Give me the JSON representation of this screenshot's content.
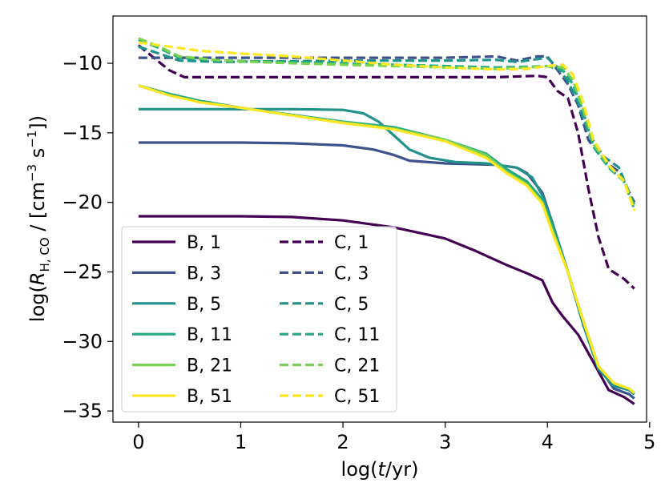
{
  "chart_data": {
    "type": "line",
    "title": "",
    "xlabel": "log(t/yr)",
    "ylabel": "log(R_H,CO / [cm^-3 s^-1])",
    "xlim": [
      -0.25,
      4.97
    ],
    "ylim": [
      -35.8,
      -6.6
    ],
    "xticks": [
      {
        "v": 0,
        "label": "0"
      },
      {
        "v": 1,
        "label": "1"
      },
      {
        "v": 2,
        "label": "2"
      },
      {
        "v": 3,
        "label": "3"
      },
      {
        "v": 4,
        "label": "4"
      },
      {
        "v": 5,
        "label": "5"
      }
    ],
    "yticks": [
      {
        "v": -10,
        "label": "−10"
      },
      {
        "v": -15,
        "label": "−15"
      },
      {
        "v": -20,
        "label": "−20"
      },
      {
        "v": -25,
        "label": "−25"
      },
      {
        "v": -30,
        "label": "−30"
      },
      {
        "v": -35,
        "label": "−35"
      }
    ],
    "legend_position": "lower-left",
    "series": [
      {
        "name": "B, 1",
        "color": "#440154",
        "dash": false,
        "points": [
          [
            0,
            -21
          ],
          [
            0.5,
            -21
          ],
          [
            1,
            -21
          ],
          [
            1.5,
            -21.05
          ],
          [
            2,
            -21.3
          ],
          [
            2.5,
            -21.8
          ],
          [
            3,
            -22.6
          ],
          [
            3.3,
            -23.5
          ],
          [
            3.6,
            -24.5
          ],
          [
            3.8,
            -25.1
          ],
          [
            3.95,
            -25.6
          ],
          [
            4.05,
            -27.2
          ],
          [
            4.15,
            -28.2
          ],
          [
            4.3,
            -29.5
          ],
          [
            4.45,
            -31.5
          ],
          [
            4.6,
            -33.5
          ],
          [
            4.75,
            -34
          ],
          [
            4.85,
            -34.5
          ]
        ]
      },
      {
        "name": "B, 3",
        "color": "#3b528b",
        "dash": false,
        "points": [
          [
            0,
            -15.7
          ],
          [
            0.5,
            -15.7
          ],
          [
            1,
            -15.7
          ],
          [
            1.5,
            -15.75
          ],
          [
            2,
            -15.9
          ],
          [
            2.3,
            -16.2
          ],
          [
            2.5,
            -16.6
          ],
          [
            2.65,
            -17
          ],
          [
            3,
            -17.2
          ],
          [
            3.5,
            -17.3
          ],
          [
            3.7,
            -17.5
          ],
          [
            3.8,
            -17.9
          ],
          [
            3.95,
            -19.3
          ],
          [
            4.05,
            -21.5
          ],
          [
            4.2,
            -25
          ],
          [
            4.35,
            -28.5
          ],
          [
            4.5,
            -31.8
          ],
          [
            4.65,
            -33.4
          ],
          [
            4.8,
            -33.8
          ],
          [
            4.85,
            -34.1
          ]
        ]
      },
      {
        "name": "B, 5",
        "color": "#21918c",
        "dash": false,
        "points": [
          [
            0,
            -13.3
          ],
          [
            0.5,
            -13.3
          ],
          [
            1,
            -13.3
          ],
          [
            1.5,
            -13.3
          ],
          [
            2,
            -13.35
          ],
          [
            2.2,
            -13.6
          ],
          [
            2.35,
            -14.2
          ],
          [
            2.5,
            -15.2
          ],
          [
            2.65,
            -16.2
          ],
          [
            2.85,
            -16.8
          ],
          [
            3.1,
            -17.1
          ],
          [
            3.4,
            -17.2
          ],
          [
            3.7,
            -17.5
          ],
          [
            3.85,
            -18.2
          ],
          [
            3.95,
            -19.5
          ],
          [
            4.05,
            -21.5
          ],
          [
            4.2,
            -25
          ],
          [
            4.35,
            -28.8
          ],
          [
            4.5,
            -32
          ],
          [
            4.65,
            -33.2
          ],
          [
            4.8,
            -33.5
          ],
          [
            4.85,
            -33.8
          ]
        ]
      },
      {
        "name": "B, 11",
        "color": "#22a884",
        "dash": false,
        "points": [
          [
            0,
            -11.6
          ],
          [
            0.3,
            -12.2
          ],
          [
            0.6,
            -12.7
          ],
          [
            1,
            -13.2
          ],
          [
            1.5,
            -13.7
          ],
          [
            2,
            -14.2
          ],
          [
            2.5,
            -14.6
          ],
          [
            3,
            -15.5
          ],
          [
            3.4,
            -16.5
          ],
          [
            3.6,
            -17.6
          ],
          [
            3.8,
            -18.5
          ],
          [
            3.95,
            -19.8
          ],
          [
            4.05,
            -21.8
          ],
          [
            4.2,
            -25
          ],
          [
            4.35,
            -28.5
          ],
          [
            4.5,
            -31.8
          ],
          [
            4.65,
            -33
          ],
          [
            4.8,
            -33.4
          ],
          [
            4.85,
            -33.7
          ]
        ]
      },
      {
        "name": "B, 21",
        "color": "#7ad151",
        "dash": false,
        "points": [
          [
            0,
            -11.6
          ],
          [
            0.3,
            -12.3
          ],
          [
            0.6,
            -12.8
          ],
          [
            1,
            -13.2
          ],
          [
            1.5,
            -13.75
          ],
          [
            2,
            -14.25
          ],
          [
            2.5,
            -14.7
          ],
          [
            3,
            -15.5
          ],
          [
            3.4,
            -16.6
          ],
          [
            3.6,
            -17.8
          ],
          [
            3.8,
            -18.7
          ],
          [
            3.95,
            -20
          ],
          [
            4.05,
            -22
          ],
          [
            4.2,
            -25
          ],
          [
            4.35,
            -28.5
          ],
          [
            4.5,
            -31.8
          ],
          [
            4.65,
            -33
          ],
          [
            4.8,
            -33.4
          ],
          [
            4.85,
            -33.7
          ]
        ]
      },
      {
        "name": "B, 51",
        "color": "#fde725",
        "dash": false,
        "points": [
          [
            0,
            -11.6
          ],
          [
            0.3,
            -12.3
          ],
          [
            0.6,
            -12.8
          ],
          [
            1,
            -13.2
          ],
          [
            1.5,
            -13.75
          ],
          [
            2,
            -14.3
          ],
          [
            2.5,
            -14.75
          ],
          [
            3,
            -15.6
          ],
          [
            3.4,
            -16.8
          ],
          [
            3.6,
            -17.9
          ],
          [
            3.8,
            -18.8
          ],
          [
            3.95,
            -20.1
          ],
          [
            4.05,
            -22.2
          ],
          [
            4.2,
            -25
          ],
          [
            4.35,
            -28.5
          ],
          [
            4.5,
            -31.8
          ],
          [
            4.65,
            -33
          ],
          [
            4.8,
            -33.4
          ],
          [
            4.85,
            -33.7
          ]
        ]
      },
      {
        "name": "C, 1",
        "color": "#440154",
        "dash": true,
        "points": [
          [
            0,
            -8.7
          ],
          [
            0.15,
            -9.6
          ],
          [
            0.3,
            -10.5
          ],
          [
            0.45,
            -11
          ],
          [
            1,
            -11
          ],
          [
            2,
            -11
          ],
          [
            3,
            -11
          ],
          [
            3.5,
            -11
          ],
          [
            3.7,
            -10.95
          ],
          [
            3.9,
            -10.9
          ],
          [
            4,
            -11
          ],
          [
            4.1,
            -12
          ],
          [
            4.2,
            -12.5
          ],
          [
            4.3,
            -15
          ],
          [
            4.4,
            -19
          ],
          [
            4.5,
            -22.5
          ],
          [
            4.6,
            -24.8
          ],
          [
            4.75,
            -25.5
          ],
          [
            4.85,
            -26.2
          ]
        ]
      },
      {
        "name": "C, 3",
        "color": "#3b528b",
        "dash": true,
        "points": [
          [
            0,
            -9.6
          ],
          [
            0.5,
            -9.6
          ],
          [
            1,
            -9.6
          ],
          [
            1.5,
            -9.6
          ],
          [
            2,
            -9.6
          ],
          [
            2.5,
            -9.6
          ],
          [
            3,
            -9.6
          ],
          [
            3.5,
            -9.5
          ],
          [
            3.7,
            -9.8
          ],
          [
            3.9,
            -9.5
          ],
          [
            4,
            -9.5
          ],
          [
            4.1,
            -10.5
          ],
          [
            4.2,
            -11.5
          ],
          [
            4.3,
            -13
          ],
          [
            4.4,
            -15.5
          ],
          [
            4.55,
            -17
          ],
          [
            4.7,
            -17.8
          ],
          [
            4.85,
            -20
          ]
        ]
      },
      {
        "name": "C, 5",
        "color": "#21918c",
        "dash": true,
        "points": [
          [
            0,
            -8.8
          ],
          [
            0.2,
            -9.3
          ],
          [
            0.4,
            -9.8
          ],
          [
            0.8,
            -9.9
          ],
          [
            1.5,
            -9.85
          ],
          [
            2,
            -9.8
          ],
          [
            2.5,
            -9.8
          ],
          [
            3,
            -9.8
          ],
          [
            3.5,
            -9.75
          ],
          [
            3.7,
            -9.9
          ],
          [
            3.9,
            -9.7
          ],
          [
            4,
            -9.6
          ],
          [
            4.1,
            -10.3
          ],
          [
            4.2,
            -11.3
          ],
          [
            4.3,
            -12.8
          ],
          [
            4.4,
            -15
          ],
          [
            4.55,
            -16.7
          ],
          [
            4.7,
            -17.5
          ],
          [
            4.85,
            -20.2
          ]
        ]
      },
      {
        "name": "C, 11",
        "color": "#22a884",
        "dash": true,
        "points": [
          [
            0,
            -8.3
          ],
          [
            0.2,
            -8.9
          ],
          [
            0.4,
            -9.6
          ],
          [
            0.8,
            -9.8
          ],
          [
            1.5,
            -9.9
          ],
          [
            2,
            -10
          ],
          [
            2.5,
            -10.1
          ],
          [
            3,
            -10.2
          ],
          [
            3.5,
            -10.3
          ],
          [
            3.8,
            -10.25
          ],
          [
            4,
            -10.2
          ],
          [
            4.15,
            -10.5
          ],
          [
            4.25,
            -11.5
          ],
          [
            4.35,
            -13.5
          ],
          [
            4.45,
            -16
          ],
          [
            4.6,
            -17.5
          ],
          [
            4.75,
            -18.5
          ],
          [
            4.85,
            -20.5
          ]
        ]
      },
      {
        "name": "C, 21",
        "color": "#7ad151",
        "dash": true,
        "points": [
          [
            0,
            -8.2
          ],
          [
            0.2,
            -8.8
          ],
          [
            0.4,
            -9.5
          ],
          [
            0.8,
            -9.8
          ],
          [
            1.5,
            -10
          ],
          [
            2,
            -10.1
          ],
          [
            2.5,
            -10.2
          ],
          [
            3,
            -10.3
          ],
          [
            3.5,
            -10.4
          ],
          [
            3.8,
            -10.3
          ],
          [
            4,
            -10.2
          ],
          [
            4.15,
            -10.3
          ],
          [
            4.25,
            -11.2
          ],
          [
            4.35,
            -13.3
          ],
          [
            4.45,
            -15.8
          ],
          [
            4.6,
            -17.4
          ],
          [
            4.75,
            -18.4
          ],
          [
            4.85,
            -20.4
          ]
        ]
      },
      {
        "name": "C, 51",
        "color": "#fde725",
        "dash": true,
        "points": [
          [
            0,
            -8.5
          ],
          [
            0.3,
            -8.8
          ],
          [
            0.6,
            -9.1
          ],
          [
            1,
            -9.3
          ],
          [
            1.5,
            -9.5
          ],
          [
            2,
            -9.8
          ],
          [
            2.5,
            -10.1
          ],
          [
            3,
            -10.3
          ],
          [
            3.5,
            -10.45
          ],
          [
            3.8,
            -10.4
          ],
          [
            4,
            -10.2
          ],
          [
            4.15,
            -10.1
          ],
          [
            4.25,
            -10.8
          ],
          [
            4.35,
            -12.8
          ],
          [
            4.45,
            -15.5
          ],
          [
            4.6,
            -17.3
          ],
          [
            4.75,
            -18.5
          ],
          [
            4.85,
            -20.6
          ]
        ]
      }
    ]
  }
}
